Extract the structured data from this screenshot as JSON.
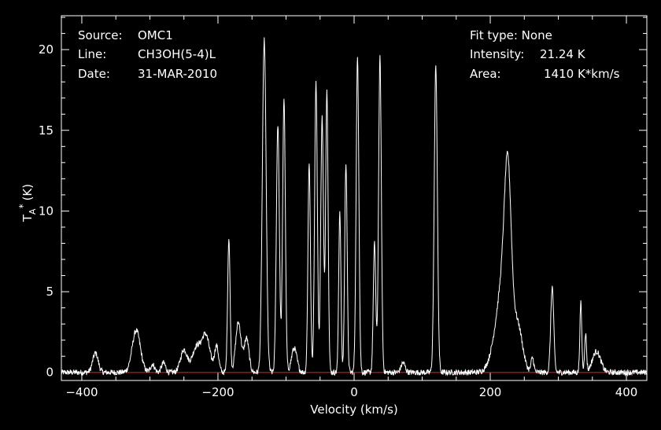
{
  "info": {
    "source_label": "Source:",
    "source_value": "OMC1",
    "line_label": "Line:",
    "line_value": "CH3OH(5-4)L",
    "date_label": "Date:",
    "date_value": "31-MAR-2010",
    "fit_type": "Fit type: None",
    "intensity_label": "Intensity:",
    "intensity_value": "21.24 K",
    "area_label": "Area:",
    "area_value": "1410 K*km/s"
  },
  "chart_data": {
    "type": "line",
    "title": "",
    "xlabel": "Velocity (km/s)",
    "ylabel_main": "T",
    "ylabel_sub": "A",
    "ylabel_sup": "*",
    "ylabel_unit": "(K)",
    "xlim": [
      -430,
      430
    ],
    "ylim": [
      -0.5,
      22.1
    ],
    "xticks": [
      -400,
      -200,
      0,
      200,
      400
    ],
    "xtick_labels": [
      "−400",
      "−200",
      "0",
      "200",
      "400"
    ],
    "yticks": [
      0,
      5,
      10,
      15,
      20
    ],
    "ytick_labels": [
      "0",
      "5",
      "10",
      "15",
      "20"
    ],
    "baseline": 0,
    "colors": {
      "background": "#000000",
      "spectrum": "#ffffff",
      "baseline": "#d01010",
      "axes": "#ffffff"
    },
    "series": [
      {
        "peaks": [
          {
            "v": -380,
            "a": 1.2,
            "w": 4
          },
          {
            "v": -320,
            "a": 2.6,
            "w": 6
          },
          {
            "v": -296,
            "a": 0.5,
            "w": 3
          },
          {
            "v": -280,
            "a": 0.6,
            "w": 3
          },
          {
            "v": -250,
            "a": 1.4,
            "w": 5
          },
          {
            "v": -232,
            "a": 1.5,
            "w": 6
          },
          {
            "v": -218,
            "a": 2.3,
            "w": 6
          },
          {
            "v": -202,
            "a": 1.6,
            "w": 3
          },
          {
            "v": -184,
            "a": 8.3,
            "w": 1.8
          },
          {
            "v": -170,
            "a": 3.1,
            "w": 4
          },
          {
            "v": -158,
            "a": 2.1,
            "w": 3.5
          },
          {
            "v": -132,
            "a": 20.6,
            "w": 2.8
          },
          {
            "v": -112,
            "a": 15.4,
            "w": 2.2
          },
          {
            "v": -103,
            "a": 17.0,
            "w": 2.0
          },
          {
            "v": -88,
            "a": 1.5,
            "w": 4
          },
          {
            "v": -66,
            "a": 13.0,
            "w": 1.8
          },
          {
            "v": -56,
            "a": 18.0,
            "w": 2.0
          },
          {
            "v": -47,
            "a": 15.8,
            "w": 2.0
          },
          {
            "v": -40,
            "a": 17.5,
            "w": 1.8
          },
          {
            "v": -21,
            "a": 10.0,
            "w": 1.6
          },
          {
            "v": -12,
            "a": 13.0,
            "w": 1.8
          },
          {
            "v": 5,
            "a": 19.5,
            "w": 2.0
          },
          {
            "v": 30,
            "a": 8.0,
            "w": 1.8
          },
          {
            "v": 38,
            "a": 19.5,
            "w": 2.0
          },
          {
            "v": 72,
            "a": 0.6,
            "w": 3
          },
          {
            "v": 120,
            "a": 19.0,
            "w": 2.3
          },
          {
            "v": 205,
            "a": 1.0,
            "w": 8
          },
          {
            "v": 218,
            "a": 5.0,
            "w": 8
          },
          {
            "v": 226,
            "a": 10.0,
            "w": 5
          },
          {
            "v": 240,
            "a": 3.0,
            "w": 7
          },
          {
            "v": 262,
            "a": 0.9,
            "w": 2
          },
          {
            "v": 291,
            "a": 5.3,
            "w": 2.2
          },
          {
            "v": 333,
            "a": 4.3,
            "w": 1.4
          },
          {
            "v": 340,
            "a": 2.4,
            "w": 1.4
          },
          {
            "v": 356,
            "a": 1.3,
            "w": 6
          }
        ]
      }
    ]
  }
}
